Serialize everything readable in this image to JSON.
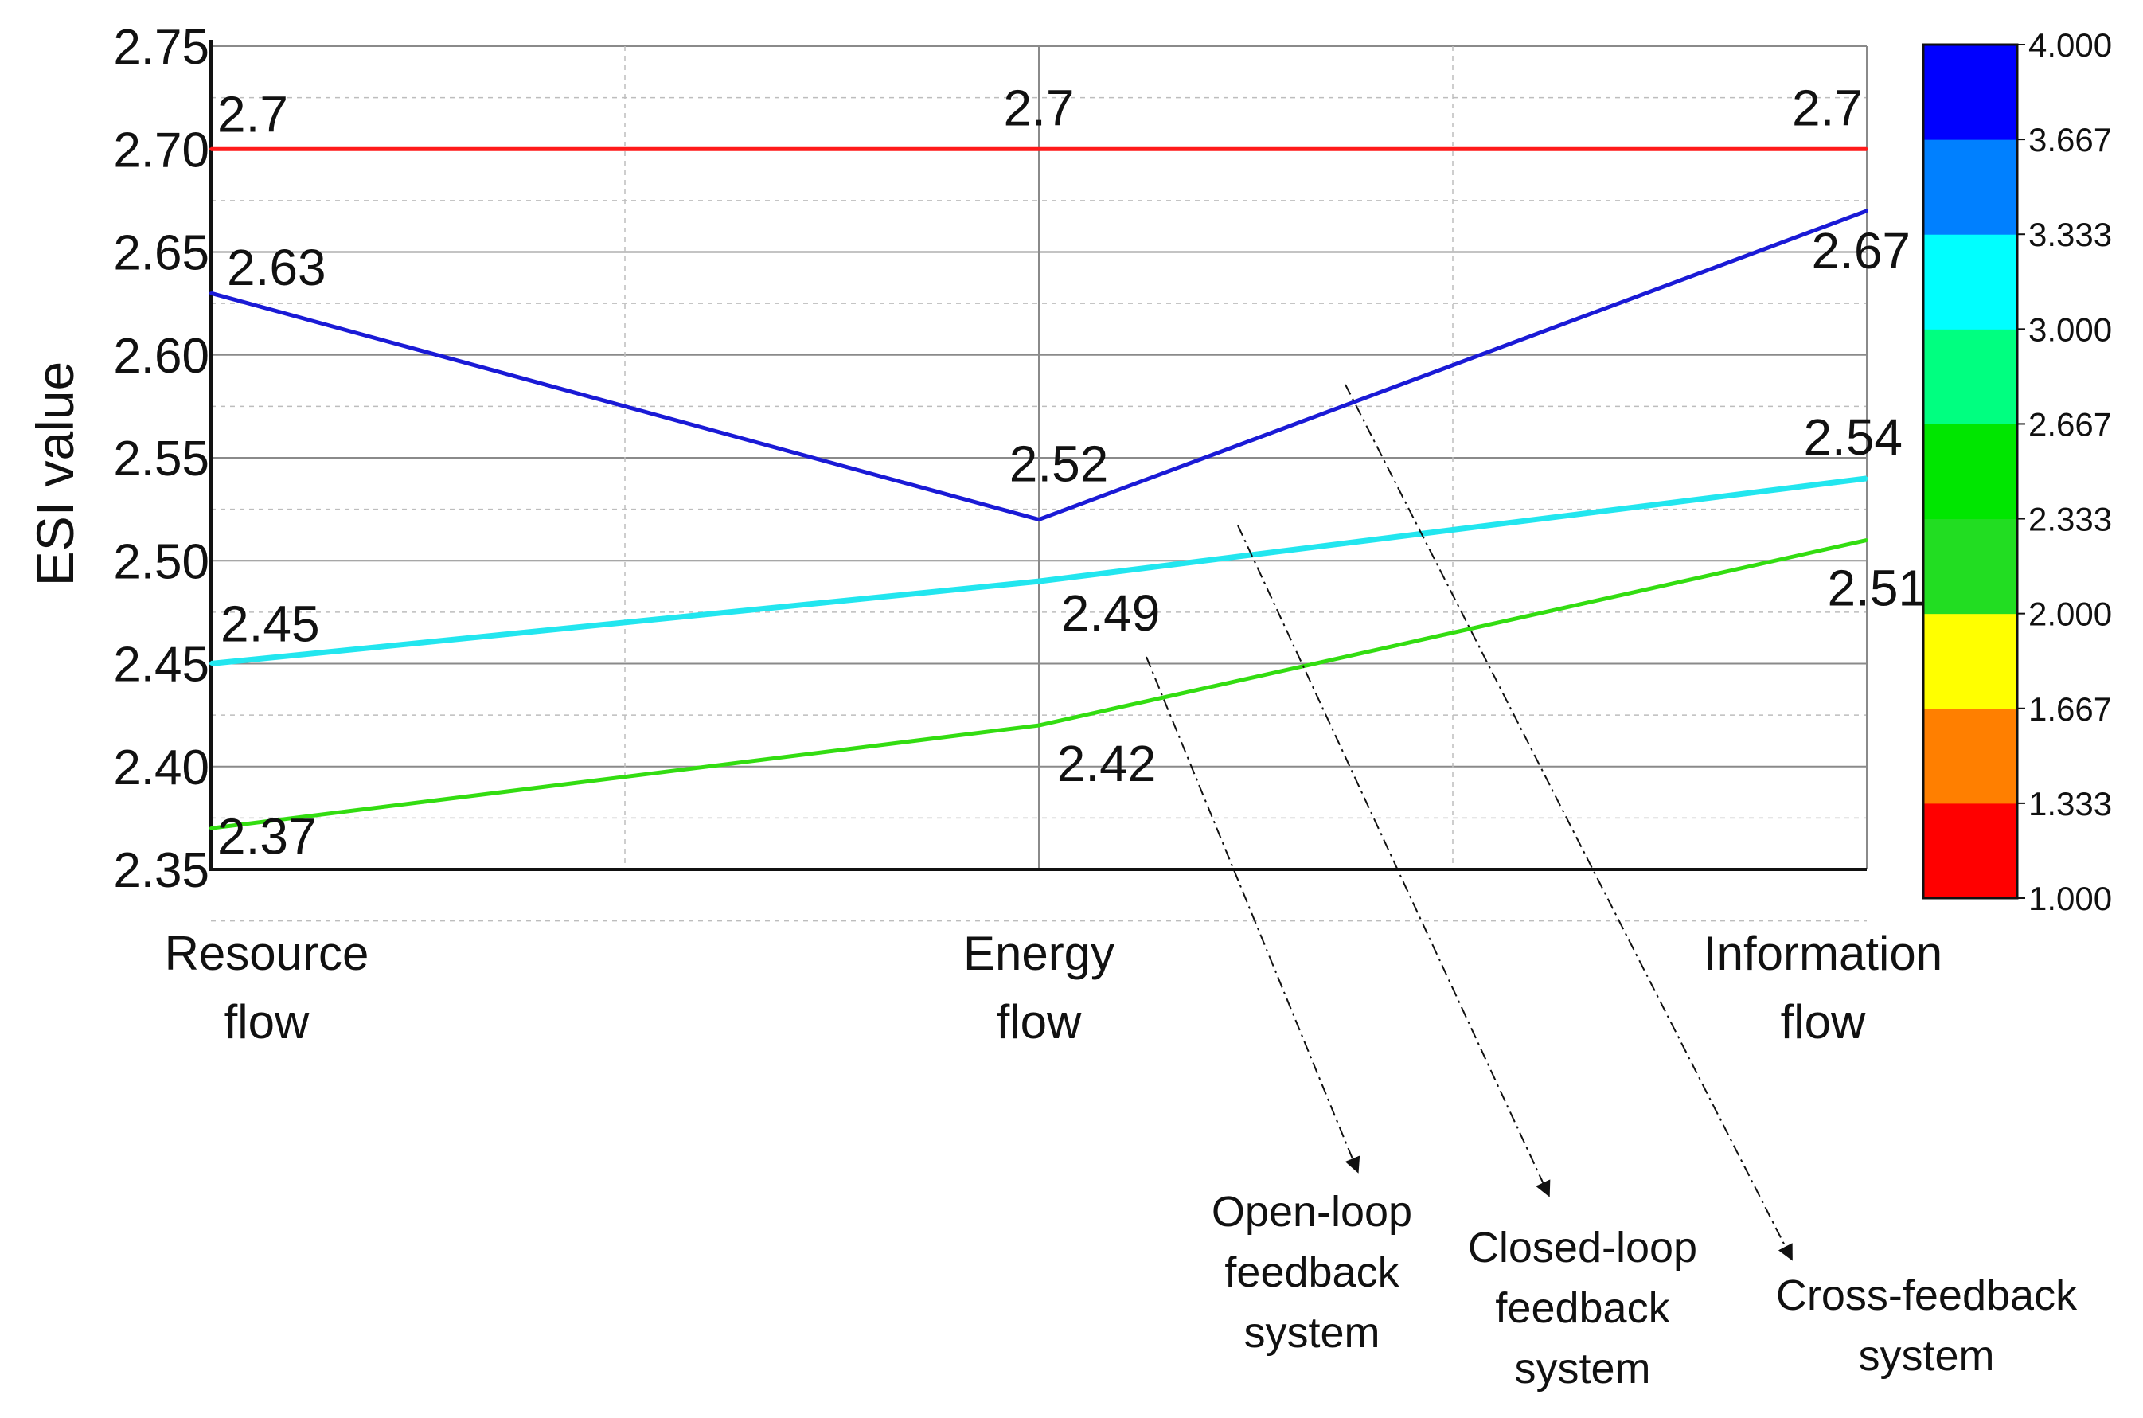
{
  "chart_data": {
    "type": "line",
    "ylabel": "ESI value",
    "ylim": [
      2.35,
      2.75
    ],
    "yticks": [
      "2.35",
      "2.40",
      "2.45",
      "2.50",
      "2.55",
      "2.60",
      "2.65",
      "2.70",
      "2.75"
    ],
    "categories": [
      "Resource flow",
      "Energy flow",
      "Information flow"
    ],
    "category_lines": [
      [
        "Resource",
        "flow"
      ],
      [
        "Energy",
        "flow"
      ],
      [
        "Information",
        "flow"
      ]
    ],
    "grid": true,
    "series": [
      {
        "color": "#ff1a1a",
        "values": [
          2.7,
          2.7,
          2.7
        ],
        "labels": [
          "2.7",
          "2.7",
          "2.7"
        ]
      },
      {
        "color": "#1a1ad6",
        "values": [
          2.63,
          2.52,
          2.67
        ],
        "labels": [
          "2.63",
          "2.52",
          "2.67"
        ]
      },
      {
        "color": "#22e6ef",
        "values": [
          2.45,
          2.49,
          2.54
        ],
        "labels": [
          "2.45",
          "2.49",
          "2.54"
        ]
      },
      {
        "color": "#33dd11",
        "values": [
          2.37,
          2.42,
          2.51
        ],
        "labels": [
          "2.37",
          "2.42",
          "2.51"
        ]
      }
    ],
    "colorbar": {
      "ticks": [
        "1.000",
        "1.333",
        "1.667",
        "2.000",
        "2.333",
        "2.667",
        "3.000",
        "3.333",
        "3.667",
        "4.000"
      ],
      "colors_bottom_to_top": [
        "#ff0000",
        "#ff7f00",
        "#ffff00",
        "#22dd22",
        "#00e600",
        "#00ff80",
        "#00ffff",
        "#0080ff",
        "#0000ff"
      ]
    },
    "annotations": [
      {
        "lines": [
          "Open-loop",
          "feedback",
          "system"
        ]
      },
      {
        "lines": [
          "Closed-loop",
          "feedback",
          "system"
        ]
      },
      {
        "lines": [
          "Cross-feedback",
          "system"
        ]
      }
    ]
  }
}
